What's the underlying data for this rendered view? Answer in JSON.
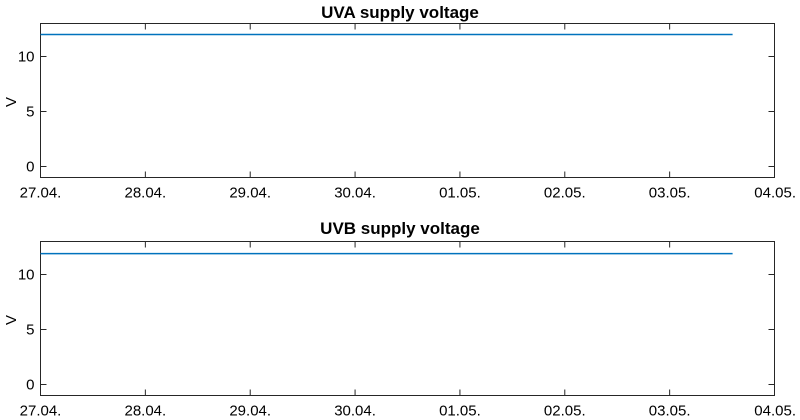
{
  "chart_data": [
    {
      "type": "line",
      "title": "UVA supply voltage",
      "ylabel": "V",
      "xlabel": "",
      "x_tick_labels": [
        "27.04.",
        "28.04.",
        "29.04.",
        "30.04.",
        "01.05.",
        "02.05.",
        "03.05.",
        "04.05."
      ],
      "x_days": [
        0,
        1,
        2,
        3,
        4,
        5,
        6,
        7
      ],
      "xlim": [
        0,
        7
      ],
      "y_ticks": [
        0,
        5,
        10
      ],
      "ylim": [
        -1,
        13
      ],
      "grid": false,
      "series": [
        {
          "color": "#0072bd",
          "x": [
            0.0,
            1.0,
            2.0,
            3.0,
            4.0,
            5.0,
            6.0,
            6.6
          ],
          "y": [
            12.0,
            12.0,
            12.0,
            12.0,
            12.0,
            12.0,
            12.0,
            12.0
          ]
        }
      ]
    },
    {
      "type": "line",
      "title": "UVB supply voltage",
      "ylabel": "V",
      "xlabel": "",
      "x_tick_labels": [
        "27.04.",
        "28.04.",
        "29.04.",
        "30.04.",
        "01.05.",
        "02.05.",
        "03.05.",
        "04.05."
      ],
      "x_days": [
        0,
        1,
        2,
        3,
        4,
        5,
        6,
        7
      ],
      "xlim": [
        0,
        7
      ],
      "y_ticks": [
        0,
        5,
        10
      ],
      "ylim": [
        -1,
        13
      ],
      "grid": false,
      "series": [
        {
          "color": "#0072bd",
          "x": [
            0.0,
            1.0,
            2.0,
            3.0,
            4.0,
            5.0,
            6.0,
            6.6
          ],
          "y": [
            11.9,
            11.9,
            11.9,
            11.9,
            11.9,
            11.9,
            11.9,
            11.9
          ]
        }
      ]
    }
  ]
}
